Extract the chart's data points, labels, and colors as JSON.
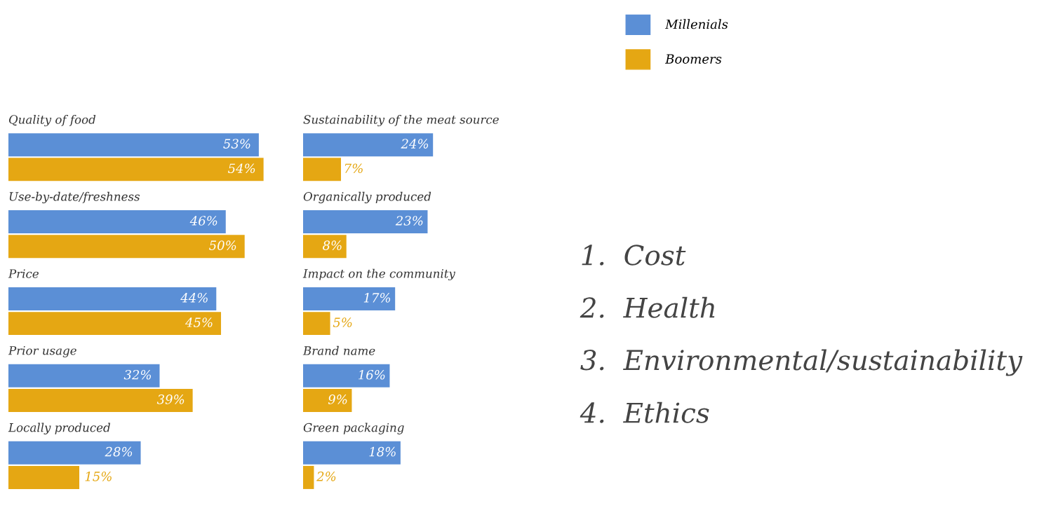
{
  "chart_data": [
    {
      "type": "bar",
      "orientation": "horizontal",
      "legend": "top right",
      "categories": [
        "Quality of food",
        "Use-by-date/freshness",
        "Price",
        "Prior usage",
        "Locally produced"
      ],
      "series": [
        {
          "name": "Millenials",
          "color": "#5b8fd6",
          "values": [
            53,
            46,
            44,
            32,
            28
          ],
          "value_labels": [
            "53%",
            "46%",
            "44%",
            "32%",
            "28%"
          ]
        },
        {
          "name": "Boomers",
          "color": "#e5a713",
          "values": [
            54,
            50,
            45,
            39,
            15
          ],
          "value_labels": [
            "54%",
            "50%",
            "45%",
            "39%",
            "15%"
          ]
        }
      ]
    },
    {
      "type": "bar",
      "orientation": "horizontal",
      "categories": [
        "Sustainability of the meat source",
        "Organically produced",
        "Impact on the community",
        "Brand name",
        "Green packaging"
      ],
      "series": [
        {
          "color": "#5b8fd6",
          "values": [
            24,
            23,
            17,
            16,
            18
          ],
          "value_labels": [
            "24%",
            "23%",
            "17%",
            "16%",
            "18%"
          ]
        },
        {
          "color": "#e5a713",
          "values": [
            7,
            8,
            5,
            9,
            2
          ],
          "value_labels": [
            "7%",
            "8%",
            "5%",
            "9%",
            "2%"
          ]
        }
      ]
    },
    {
      "type": "other",
      "annotations": [
        "1.  Cost",
        "2.  Health",
        "3.  Environmental/sustainability",
        "4.  Ethics"
      ]
    }
  ]
}
